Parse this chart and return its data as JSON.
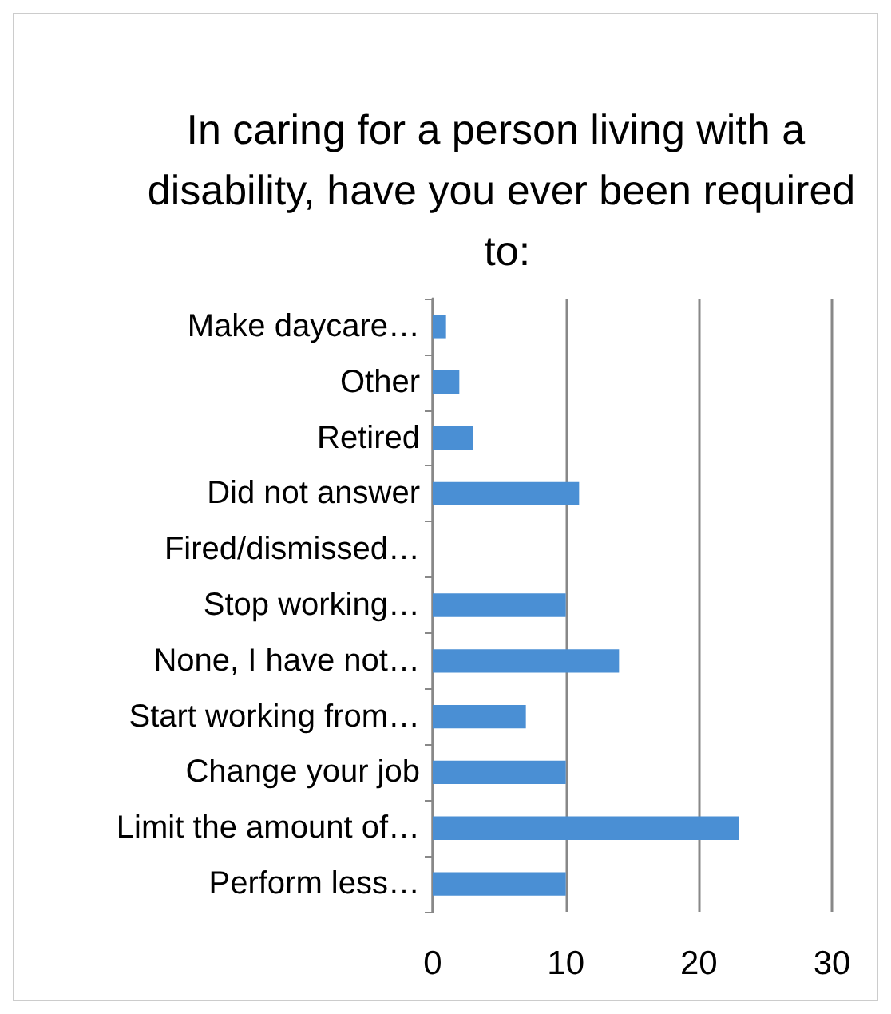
{
  "chart_data": {
    "type": "bar",
    "orientation": "horizontal",
    "title": "In caring for a person living with a disability, have you ever been required to:",
    "categories": [
      "Make daycare…",
      "Other",
      "Retired",
      "Did not answer",
      "Fired/dismissed…",
      "Stop working…",
      "None, I have not…",
      "Start working from…",
      "Change your job",
      "Limit the amount of…",
      "Perform less…"
    ],
    "values": [
      1,
      2,
      3,
      11,
      0,
      10,
      14,
      7,
      10,
      23,
      10
    ],
    "color": "#4a8fd4",
    "xlim": [
      0,
      30
    ],
    "xticks": [
      0,
      10,
      20,
      30
    ],
    "grid": "x"
  }
}
